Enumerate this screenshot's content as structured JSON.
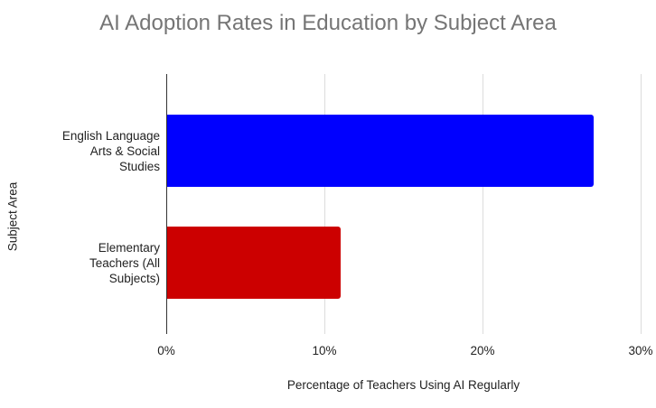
{
  "chart_data": {
    "type": "bar",
    "orientation": "horizontal",
    "title": "AI Adoption Rates in Education by Subject Area",
    "xlabel": "Percentage of Teachers Using AI Regularly",
    "ylabel": "Subject Area",
    "categories": [
      "English Language Arts & Social Studies",
      "Elementary Teachers (All Subjects)"
    ],
    "values": [
      27,
      11
    ],
    "unit": "%",
    "colors": [
      "#0000ff",
      "#cc0000"
    ],
    "xlim": [
      0,
      30
    ],
    "xticks": [
      "0%",
      "10%",
      "20%",
      "30%"
    ],
    "grid": true,
    "legend": null
  },
  "labels": {
    "cat0_lines": [
      "English Language",
      "Arts & Social",
      "Studies"
    ],
    "cat1_lines": [
      "Elementary",
      "Teachers (All",
      "Subjects)"
    ]
  }
}
